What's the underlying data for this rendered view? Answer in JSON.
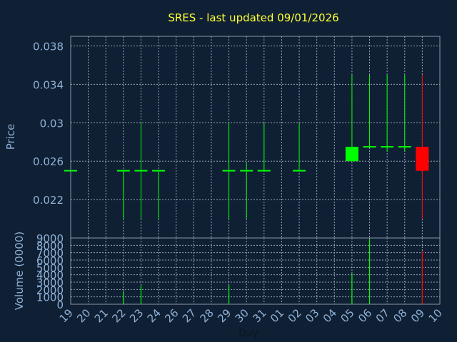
{
  "chart_data": [
    {
      "type": "candlestick",
      "title": "SRES - last updated 09/01/2026",
      "ylabel": "Price",
      "xlabel": "Day",
      "ylim": [
        0.018,
        0.039
      ],
      "yticks": [
        "0.038",
        "0.034",
        "0.03",
        "0.026",
        "0.022"
      ],
      "y_tick_values": [
        0.038,
        0.034,
        0.03,
        0.026,
        0.022
      ],
      "grid": true,
      "up_color": "#00ff00",
      "down_color": "#ff0000",
      "days": [
        "19",
        "20",
        "21",
        "22",
        "23",
        "24",
        "26",
        "27",
        "28",
        "29",
        "30",
        "31",
        "01",
        "02",
        "03",
        "04",
        "05",
        "06",
        "07",
        "08",
        "09",
        "10"
      ],
      "candles": [
        {
          "day": "19",
          "open": 0.025,
          "high": 0.025,
          "low": 0.025,
          "close": 0.025
        },
        {
          "day": "22",
          "open": 0.025,
          "high": 0.025,
          "low": 0.02,
          "close": 0.025
        },
        {
          "day": "23",
          "open": 0.025,
          "high": 0.03,
          "low": 0.02,
          "close": 0.025
        },
        {
          "day": "24",
          "open": 0.025,
          "high": 0.025,
          "low": 0.02,
          "close": 0.025
        },
        {
          "day": "29",
          "open": 0.025,
          "high": 0.03,
          "low": 0.02,
          "close": 0.025
        },
        {
          "day": "30",
          "open": 0.025,
          "high": 0.0258,
          "low": 0.02,
          "close": 0.025
        },
        {
          "day": "31",
          "open": 0.025,
          "high": 0.03,
          "low": 0.025,
          "close": 0.025
        },
        {
          "day": "02",
          "open": 0.025,
          "high": 0.03,
          "low": 0.025,
          "close": 0.025
        },
        {
          "day": "05",
          "open": 0.026,
          "high": 0.035,
          "low": 0.026,
          "close": 0.0275
        },
        {
          "day": "06",
          "open": 0.0275,
          "high": 0.035,
          "low": 0.0275,
          "close": 0.0275
        },
        {
          "day": "07",
          "open": 0.0275,
          "high": 0.035,
          "low": 0.027,
          "close": 0.0275
        },
        {
          "day": "08",
          "open": 0.0275,
          "high": 0.035,
          "low": 0.027,
          "close": 0.0275
        },
        {
          "day": "09",
          "open": 0.0275,
          "high": 0.035,
          "low": 0.02,
          "close": 0.025
        }
      ]
    },
    {
      "type": "bar",
      "ylabel": "Volume (0000)",
      "ylim": [
        0,
        9000
      ],
      "yticks": [
        "9000",
        "8000",
        "7000",
        "6000",
        "5000",
        "4000",
        "3000",
        "2000",
        "1000",
        "0"
      ],
      "y_tick_values": [
        9000,
        8000,
        7000,
        6000,
        5000,
        4000,
        3000,
        2000,
        1000,
        0
      ],
      "grid": true,
      "categories": [
        "22",
        "23",
        "29",
        "05",
        "06",
        "09"
      ],
      "values": [
        1800,
        2600,
        2600,
        4200,
        8800,
        7200
      ],
      "colors": [
        "#00ff00",
        "#00ff00",
        "#00ff00",
        "#00ff00",
        "#00ff00",
        "#ff0000"
      ]
    }
  ]
}
